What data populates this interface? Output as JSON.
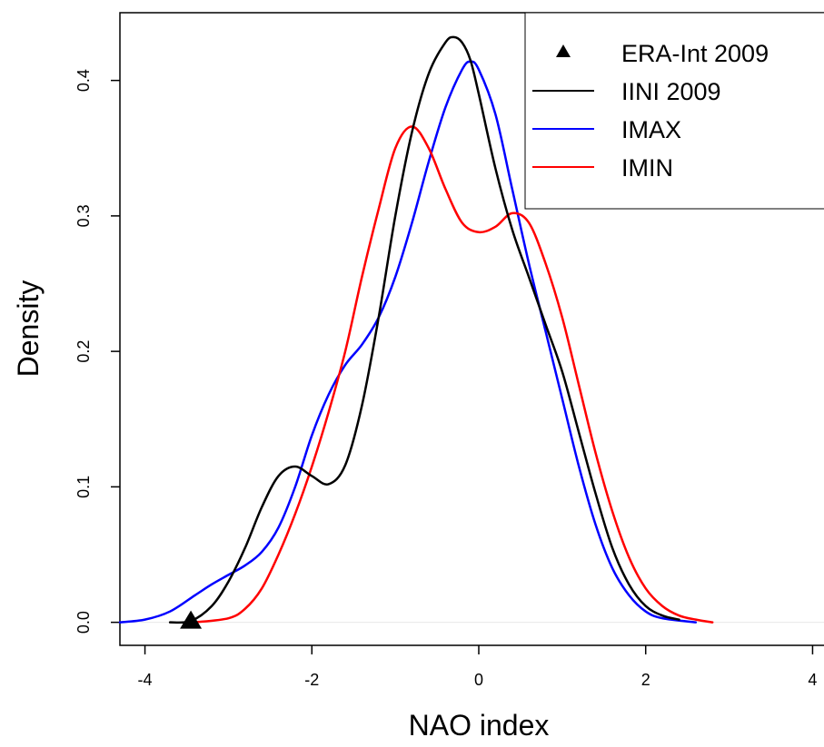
{
  "chart_data": {
    "type": "line",
    "title": "",
    "xlabel": "NAO index",
    "ylabel": "Density",
    "xlim": [
      -4.3,
      4.3
    ],
    "ylim": [
      -0.017,
      0.45
    ],
    "x_ticks": [
      -4,
      -2,
      0,
      2,
      4
    ],
    "x_tick_labels": [
      "-4",
      "-2",
      "0",
      "2",
      "4"
    ],
    "y_ticks": [
      0.0,
      0.1,
      0.2,
      0.3,
      0.4
    ],
    "y_tick_labels": [
      "0.0",
      "0.1",
      "0.2",
      "0.3",
      "0.4"
    ],
    "grid": false,
    "legend_position": "top-right",
    "marker": {
      "name": "ERA-Int 2009",
      "shape": "triangle",
      "color": "#000000",
      "x": -3.45,
      "y": 0.0
    },
    "series": [
      {
        "name": "IINI 2009",
        "color": "#000000",
        "points": [
          [
            -3.7,
            0.0
          ],
          [
            -3.45,
            0.001
          ],
          [
            -3.2,
            0.012
          ],
          [
            -3.0,
            0.03
          ],
          [
            -2.8,
            0.055
          ],
          [
            -2.6,
            0.085
          ],
          [
            -2.4,
            0.108
          ],
          [
            -2.2,
            0.115
          ],
          [
            -2.0,
            0.108
          ],
          [
            -1.8,
            0.102
          ],
          [
            -1.6,
            0.116
          ],
          [
            -1.4,
            0.16
          ],
          [
            -1.2,
            0.225
          ],
          [
            -1.0,
            0.3
          ],
          [
            -0.8,
            0.362
          ],
          [
            -0.6,
            0.405
          ],
          [
            -0.4,
            0.428
          ],
          [
            -0.3,
            0.432
          ],
          [
            -0.2,
            0.428
          ],
          [
            -0.1,
            0.415
          ],
          [
            0.0,
            0.39
          ],
          [
            0.2,
            0.335
          ],
          [
            0.4,
            0.29
          ],
          [
            0.6,
            0.255
          ],
          [
            0.8,
            0.22
          ],
          [
            1.0,
            0.185
          ],
          [
            1.2,
            0.14
          ],
          [
            1.4,
            0.095
          ],
          [
            1.6,
            0.055
          ],
          [
            1.8,
            0.028
          ],
          [
            2.0,
            0.012
          ],
          [
            2.2,
            0.005
          ],
          [
            2.4,
            0.002
          ]
        ]
      },
      {
        "name": "IMAX",
        "color": "#0000ff",
        "points": [
          [
            -4.3,
            0.0
          ],
          [
            -4.0,
            0.002
          ],
          [
            -3.7,
            0.008
          ],
          [
            -3.4,
            0.02
          ],
          [
            -3.2,
            0.028
          ],
          [
            -3.0,
            0.035
          ],
          [
            -2.8,
            0.042
          ],
          [
            -2.6,
            0.052
          ],
          [
            -2.4,
            0.07
          ],
          [
            -2.2,
            0.1
          ],
          [
            -2.0,
            0.138
          ],
          [
            -1.8,
            0.168
          ],
          [
            -1.6,
            0.19
          ],
          [
            -1.4,
            0.205
          ],
          [
            -1.2,
            0.225
          ],
          [
            -1.0,
            0.255
          ],
          [
            -0.8,
            0.295
          ],
          [
            -0.6,
            0.34
          ],
          [
            -0.4,
            0.38
          ],
          [
            -0.2,
            0.408
          ],
          [
            -0.1,
            0.414
          ],
          [
            0.0,
            0.408
          ],
          [
            0.2,
            0.375
          ],
          [
            0.4,
            0.32
          ],
          [
            0.6,
            0.265
          ],
          [
            0.8,
            0.215
          ],
          [
            1.0,
            0.165
          ],
          [
            1.2,
            0.115
          ],
          [
            1.4,
            0.072
          ],
          [
            1.6,
            0.04
          ],
          [
            1.8,
            0.02
          ],
          [
            2.0,
            0.008
          ],
          [
            2.2,
            0.003
          ],
          [
            2.6,
            0.0
          ]
        ]
      },
      {
        "name": "IMIN",
        "color": "#ff0000",
        "points": [
          [
            -3.4,
            0.0
          ],
          [
            -3.0,
            0.003
          ],
          [
            -2.8,
            0.01
          ],
          [
            -2.6,
            0.025
          ],
          [
            -2.4,
            0.05
          ],
          [
            -2.2,
            0.08
          ],
          [
            -2.0,
            0.115
          ],
          [
            -1.8,
            0.155
          ],
          [
            -1.6,
            0.2
          ],
          [
            -1.4,
            0.255
          ],
          [
            -1.2,
            0.305
          ],
          [
            -1.0,
            0.35
          ],
          [
            -0.8,
            0.366
          ],
          [
            -0.6,
            0.35
          ],
          [
            -0.4,
            0.32
          ],
          [
            -0.2,
            0.295
          ],
          [
            0.0,
            0.288
          ],
          [
            0.2,
            0.292
          ],
          [
            0.4,
            0.302
          ],
          [
            0.6,
            0.295
          ],
          [
            0.8,
            0.265
          ],
          [
            1.0,
            0.225
          ],
          [
            1.2,
            0.175
          ],
          [
            1.4,
            0.125
          ],
          [
            1.6,
            0.082
          ],
          [
            1.8,
            0.048
          ],
          [
            2.0,
            0.025
          ],
          [
            2.2,
            0.012
          ],
          [
            2.4,
            0.005
          ],
          [
            2.6,
            0.002
          ],
          [
            2.8,
            0.0
          ]
        ]
      }
    ]
  }
}
